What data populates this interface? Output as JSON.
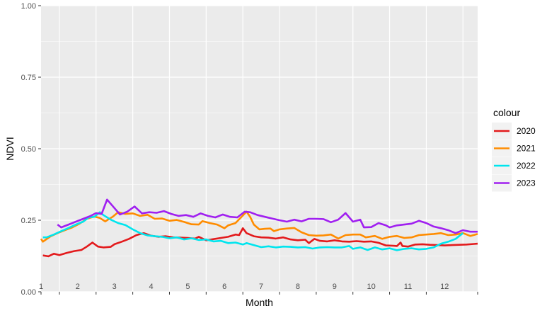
{
  "chart_data": {
    "type": "line",
    "xlabel": "Month",
    "ylabel": "NDVI",
    "x_ticks": [
      "1",
      "2",
      "3",
      "4",
      "5",
      "6",
      "7",
      "8",
      "9",
      "10",
      "11",
      "12"
    ],
    "y_ticks": [
      "0.00",
      "0.25",
      "0.50",
      "0.75",
      "1.00"
    ],
    "ylim": [
      0,
      1
    ],
    "xlim": [
      0.5,
      12.4
    ],
    "grid": true,
    "legend": {
      "title": "colour",
      "position": "right"
    },
    "series": [
      {
        "name": "2020",
        "color": "#e31a1c",
        "points": [
          [
            0.55,
            0.127
          ],
          [
            0.7,
            0.124
          ],
          [
            0.85,
            0.133
          ],
          [
            1.0,
            0.128
          ],
          [
            1.2,
            0.136
          ],
          [
            1.4,
            0.142
          ],
          [
            1.6,
            0.146
          ],
          [
            1.75,
            0.158
          ],
          [
            1.9,
            0.172
          ],
          [
            2.05,
            0.158
          ],
          [
            2.2,
            0.155
          ],
          [
            2.4,
            0.157
          ],
          [
            2.5,
            0.166
          ],
          [
            2.7,
            0.175
          ],
          [
            2.9,
            0.185
          ],
          [
            3.1,
            0.198
          ],
          [
            3.3,
            0.205
          ],
          [
            3.5,
            0.196
          ],
          [
            3.7,
            0.192
          ],
          [
            3.9,
            0.194
          ],
          [
            4.1,
            0.19
          ],
          [
            4.3,
            0.189
          ],
          [
            4.5,
            0.188
          ],
          [
            4.7,
            0.186
          ],
          [
            4.8,
            0.192
          ],
          [
            5.0,
            0.18
          ],
          [
            5.2,
            0.184
          ],
          [
            5.4,
            0.188
          ],
          [
            5.6,
            0.192
          ],
          [
            5.8,
            0.2
          ],
          [
            5.9,
            0.198
          ],
          [
            6.0,
            0.222
          ],
          [
            6.1,
            0.205
          ],
          [
            6.3,
            0.194
          ],
          [
            6.5,
            0.19
          ],
          [
            6.7,
            0.189
          ],
          [
            6.9,
            0.186
          ],
          [
            7.1,
            0.19
          ],
          [
            7.3,
            0.183
          ],
          [
            7.5,
            0.18
          ],
          [
            7.7,
            0.182
          ],
          [
            7.8,
            0.17
          ],
          [
            7.95,
            0.185
          ],
          [
            8.1,
            0.178
          ],
          [
            8.3,
            0.176
          ],
          [
            8.5,
            0.18
          ],
          [
            8.7,
            0.176
          ],
          [
            8.9,
            0.175
          ],
          [
            9.1,
            0.177
          ],
          [
            9.3,
            0.175
          ],
          [
            9.5,
            0.176
          ],
          [
            9.7,
            0.171
          ],
          [
            9.9,
            0.162
          ],
          [
            10.1,
            0.161
          ],
          [
            10.2,
            0.16
          ],
          [
            10.3,
            0.172
          ],
          [
            10.35,
            0.16
          ],
          [
            10.5,
            0.158
          ],
          [
            10.7,
            0.165
          ],
          [
            10.9,
            0.166
          ],
          [
            11.1,
            0.164
          ],
          [
            11.3,
            0.163
          ],
          [
            11.5,
            0.162
          ],
          [
            11.7,
            0.163
          ],
          [
            11.9,
            0.164
          ],
          [
            12.1,
            0.165
          ],
          [
            12.3,
            0.167
          ],
          [
            12.4,
            0.168
          ]
        ]
      },
      {
        "name": "2021",
        "color": "#ff8c00",
        "points": [
          [
            0.5,
            0.185
          ],
          [
            0.55,
            0.175
          ],
          [
            0.75,
            0.193
          ],
          [
            0.95,
            0.205
          ],
          [
            1.15,
            0.215
          ],
          [
            1.35,
            0.225
          ],
          [
            1.55,
            0.238
          ],
          [
            1.75,
            0.255
          ],
          [
            1.95,
            0.263
          ],
          [
            2.1,
            0.258
          ],
          [
            2.25,
            0.246
          ],
          [
            2.45,
            0.262
          ],
          [
            2.6,
            0.278
          ],
          [
            2.8,
            0.272
          ],
          [
            3.0,
            0.274
          ],
          [
            3.2,
            0.265
          ],
          [
            3.4,
            0.269
          ],
          [
            3.6,
            0.255
          ],
          [
            3.8,
            0.256
          ],
          [
            4.0,
            0.248
          ],
          [
            4.2,
            0.251
          ],
          [
            4.4,
            0.244
          ],
          [
            4.6,
            0.236
          ],
          [
            4.8,
            0.235
          ],
          [
            4.9,
            0.247
          ],
          [
            5.1,
            0.24
          ],
          [
            5.3,
            0.235
          ],
          [
            5.5,
            0.222
          ],
          [
            5.6,
            0.232
          ],
          [
            5.8,
            0.24
          ],
          [
            5.95,
            0.26
          ],
          [
            6.1,
            0.28
          ],
          [
            6.2,
            0.262
          ],
          [
            6.3,
            0.235
          ],
          [
            6.45,
            0.218
          ],
          [
            6.6,
            0.22
          ],
          [
            6.75,
            0.221
          ],
          [
            6.85,
            0.212
          ],
          [
            7.0,
            0.218
          ],
          [
            7.2,
            0.221
          ],
          [
            7.4,
            0.223
          ],
          [
            7.6,
            0.208
          ],
          [
            7.8,
            0.198
          ],
          [
            8.0,
            0.196
          ],
          [
            8.2,
            0.197
          ],
          [
            8.4,
            0.2
          ],
          [
            8.6,
            0.186
          ],
          [
            8.8,
            0.198
          ],
          [
            9.0,
            0.2
          ],
          [
            9.2,
            0.2
          ],
          [
            9.35,
            0.19
          ],
          [
            9.6,
            0.195
          ],
          [
            9.8,
            0.185
          ],
          [
            10.0,
            0.192
          ],
          [
            10.2,
            0.195
          ],
          [
            10.4,
            0.188
          ],
          [
            10.6,
            0.19
          ],
          [
            10.8,
            0.198
          ],
          [
            11.0,
            0.2
          ],
          [
            11.2,
            0.202
          ],
          [
            11.4,
            0.205
          ],
          [
            11.6,
            0.198
          ],
          [
            11.8,
            0.2
          ],
          [
            12.0,
            0.205
          ],
          [
            12.2,
            0.195
          ],
          [
            12.4,
            0.202
          ]
        ]
      },
      {
        "name": "2022",
        "color": "#00e5ee",
        "points": [
          [
            0.55,
            0.19
          ],
          [
            0.65,
            0.19
          ],
          [
            0.85,
            0.2
          ],
          [
            1.05,
            0.212
          ],
          [
            1.25,
            0.223
          ],
          [
            1.45,
            0.235
          ],
          [
            1.65,
            0.245
          ],
          [
            1.8,
            0.26
          ],
          [
            1.95,
            0.262
          ],
          [
            2.1,
            0.278
          ],
          [
            2.2,
            0.268
          ],
          [
            2.4,
            0.252
          ],
          [
            2.6,
            0.24
          ],
          [
            2.8,
            0.233
          ],
          [
            3.0,
            0.218
          ],
          [
            3.2,
            0.205
          ],
          [
            3.4,
            0.197
          ],
          [
            3.6,
            0.194
          ],
          [
            3.8,
            0.192
          ],
          [
            4.0,
            0.187
          ],
          [
            4.2,
            0.19
          ],
          [
            4.4,
            0.183
          ],
          [
            4.6,
            0.187
          ],
          [
            4.8,
            0.181
          ],
          [
            5.0,
            0.183
          ],
          [
            5.2,
            0.176
          ],
          [
            5.4,
            0.178
          ],
          [
            5.6,
            0.17
          ],
          [
            5.8,
            0.172
          ],
          [
            6.0,
            0.165
          ],
          [
            6.1,
            0.17
          ],
          [
            6.3,
            0.163
          ],
          [
            6.5,
            0.156
          ],
          [
            6.7,
            0.159
          ],
          [
            6.9,
            0.155
          ],
          [
            7.1,
            0.158
          ],
          [
            7.3,
            0.157
          ],
          [
            7.5,
            0.155
          ],
          [
            7.7,
            0.156
          ],
          [
            7.9,
            0.151
          ],
          [
            8.1,
            0.155
          ],
          [
            8.3,
            0.156
          ],
          [
            8.5,
            0.155
          ],
          [
            8.7,
            0.155
          ],
          [
            8.9,
            0.16
          ],
          [
            9.0,
            0.15
          ],
          [
            9.2,
            0.155
          ],
          [
            9.4,
            0.146
          ],
          [
            9.6,
            0.155
          ],
          [
            9.8,
            0.148
          ],
          [
            10.0,
            0.152
          ],
          [
            10.2,
            0.145
          ],
          [
            10.4,
            0.15
          ],
          [
            10.6,
            0.152
          ],
          [
            10.8,
            0.148
          ],
          [
            11.0,
            0.15
          ],
          [
            11.2,
            0.155
          ],
          [
            11.4,
            0.168
          ],
          [
            11.6,
            0.175
          ],
          [
            11.8,
            0.185
          ],
          [
            11.9,
            0.195
          ],
          [
            12.0,
            0.205
          ]
        ]
      },
      {
        "name": "2023",
        "color": "#a020f0",
        "points": [
          [
            0.95,
            0.235
          ],
          [
            1.05,
            0.225
          ],
          [
            1.25,
            0.235
          ],
          [
            1.45,
            0.245
          ],
          [
            1.65,
            0.255
          ],
          [
            1.85,
            0.265
          ],
          [
            2.0,
            0.275
          ],
          [
            2.15,
            0.272
          ],
          [
            2.3,
            0.322
          ],
          [
            2.45,
            0.3
          ],
          [
            2.65,
            0.27
          ],
          [
            2.85,
            0.28
          ],
          [
            3.05,
            0.298
          ],
          [
            3.25,
            0.274
          ],
          [
            3.45,
            0.278
          ],
          [
            3.65,
            0.276
          ],
          [
            3.85,
            0.282
          ],
          [
            4.05,
            0.272
          ],
          [
            4.25,
            0.265
          ],
          [
            4.45,
            0.268
          ],
          [
            4.65,
            0.262
          ],
          [
            4.85,
            0.274
          ],
          [
            5.05,
            0.265
          ],
          [
            5.25,
            0.26
          ],
          [
            5.45,
            0.27
          ],
          [
            5.65,
            0.262
          ],
          [
            5.85,
            0.26
          ],
          [
            6.05,
            0.28
          ],
          [
            6.2,
            0.278
          ],
          [
            6.4,
            0.268
          ],
          [
            6.6,
            0.262
          ],
          [
            6.8,
            0.256
          ],
          [
            7.0,
            0.25
          ],
          [
            7.2,
            0.245
          ],
          [
            7.4,
            0.252
          ],
          [
            7.6,
            0.246
          ],
          [
            7.8,
            0.255
          ],
          [
            8.0,
            0.255
          ],
          [
            8.2,
            0.254
          ],
          [
            8.4,
            0.243
          ],
          [
            8.6,
            0.252
          ],
          [
            8.8,
            0.275
          ],
          [
            9.0,
            0.245
          ],
          [
            9.2,
            0.252
          ],
          [
            9.3,
            0.225
          ],
          [
            9.5,
            0.226
          ],
          [
            9.7,
            0.24
          ],
          [
            9.9,
            0.232
          ],
          [
            10.0,
            0.225
          ],
          [
            10.2,
            0.232
          ],
          [
            10.4,
            0.235
          ],
          [
            10.6,
            0.238
          ],
          [
            10.8,
            0.248
          ],
          [
            11.0,
            0.24
          ],
          [
            11.2,
            0.228
          ],
          [
            11.4,
            0.222
          ],
          [
            11.6,
            0.215
          ],
          [
            11.8,
            0.205
          ],
          [
            12.0,
            0.215
          ],
          [
            12.2,
            0.21
          ],
          [
            12.4,
            0.21
          ]
        ]
      }
    ]
  }
}
